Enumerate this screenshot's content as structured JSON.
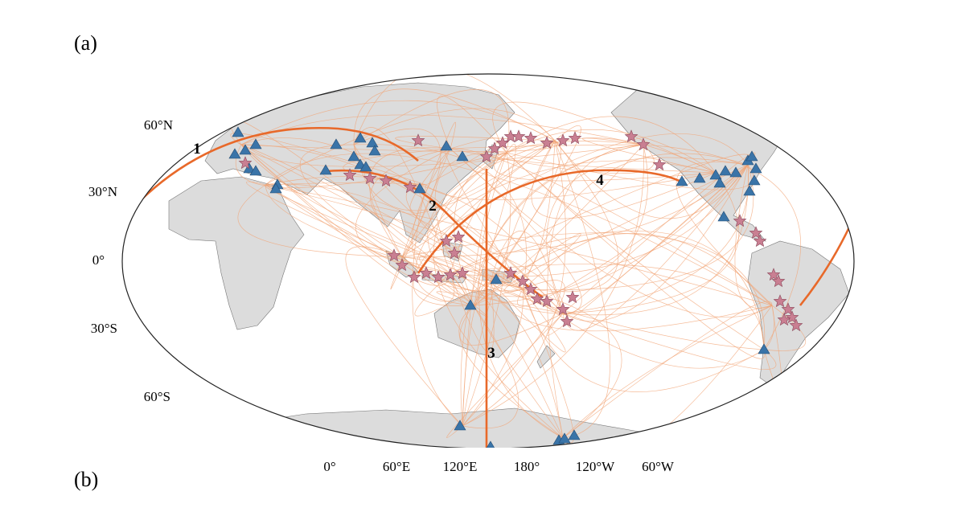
{
  "panel_labels": [
    "(a)",
    "(b)"
  ],
  "map": {
    "lat_labels": [
      "60°N",
      "30°N",
      "0°",
      "30°S",
      "60°S"
    ],
    "lon_labels": [
      "0°",
      "60°E",
      "120°E",
      "180°",
      "120°W",
      "60°W"
    ],
    "path_labels": [
      "1",
      "2",
      "3",
      "4"
    ]
  }
}
